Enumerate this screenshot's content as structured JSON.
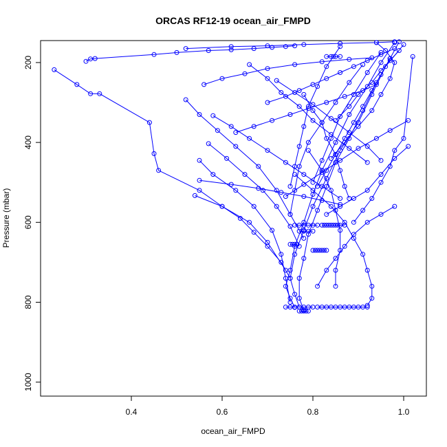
{
  "chart_data": {
    "type": "line",
    "title": "ORCAS RF12-19 ocean_air_FMPD",
    "xlabel": "ocean_air_FMPD",
    "ylabel": "Pressure (mbar)",
    "xlim": [
      0.2,
      1.05
    ],
    "ylim": [
      1035,
      145
    ],
    "y_inverted": true,
    "grid": false,
    "x_ticks": [
      0.4,
      0.6,
      0.8,
      1.0
    ],
    "x_tick_labels": [
      "0.4",
      "0.6",
      "0.8",
      "1.0"
    ],
    "y_ticks": [
      200,
      400,
      600,
      800,
      1000
    ],
    "y_tick_labels": [
      "200",
      "400",
      "600",
      "800",
      "1000"
    ],
    "color": "#0000ff",
    "series": [
      {
        "x": [
          0.98,
          0.95,
          0.92,
          0.88,
          0.85,
          0.82,
          0.8,
          0.78,
          0.76,
          0.75,
          0.74,
          0.75,
          0.76
        ],
        "y": [
          150,
          200,
          260,
          330,
          400,
          470,
          530,
          600,
          660,
          720,
          760,
          790,
          813
        ]
      },
      {
        "x": [
          0.99,
          0.97,
          0.94,
          0.91,
          0.88,
          0.85,
          0.83,
          0.81,
          0.79,
          0.78,
          0.77,
          0.77,
          0.78
        ],
        "y": [
          148,
          190,
          250,
          320,
          390,
          450,
          510,
          570,
          630,
          690,
          740,
          790,
          820
        ]
      },
      {
        "x": [
          1.0,
          0.96,
          0.93,
          0.9,
          0.86,
          0.83,
          0.8,
          0.78,
          0.76,
          0.75,
          0.76,
          0.77
        ],
        "y": [
          155,
          210,
          280,
          350,
          420,
          490,
          560,
          620,
          680,
          740,
          780,
          812
        ]
      },
      {
        "x": [
          0.52,
          0.62,
          0.7,
          0.78,
          0.86,
          0.94,
          0.98
        ],
        "y": [
          165,
          160,
          158,
          155,
          152,
          150,
          148
        ]
      },
      {
        "x": [
          0.23,
          0.28,
          0.31,
          0.33,
          0.44,
          0.45,
          0.46,
          0.55,
          0.6,
          0.66,
          0.7,
          0.74
        ],
        "y": [
          218,
          255,
          278,
          278,
          350,
          428,
          470,
          520,
          560,
          600,
          650,
          720
        ]
      },
      {
        "x": [
          0.3,
          0.31,
          0.32,
          0.45,
          0.5,
          0.57,
          0.62,
          0.67,
          0.71,
          0.74,
          0.76
        ],
        "y": [
          197,
          191,
          190,
          180,
          175,
          170,
          168,
          165,
          162,
          160,
          158
        ]
      },
      {
        "x": [
          0.52,
          0.55,
          0.59,
          0.63,
          0.68,
          0.72,
          0.75,
          0.78
        ],
        "y": [
          293,
          330,
          370,
          410,
          460,
          520,
          580,
          640
        ]
      },
      {
        "x": [
          0.56,
          0.6,
          0.65,
          0.7,
          0.76,
          0.82,
          0.88,
          0.93
        ],
        "y": [
          255,
          240,
          228,
          215,
          205,
          198,
          192,
          188
        ]
      },
      {
        "x": [
          0.55,
          0.58,
          0.63,
          0.67,
          0.71,
          0.73,
          0.74,
          0.75
        ],
        "y": [
          445,
          480,
          520,
          560,
          620,
          680,
          740,
          800
        ]
      },
      {
        "x": [
          0.55,
          0.62,
          0.68,
          0.73,
          0.78,
          0.82,
          0.86
        ],
        "y": [
          495,
          505,
          515,
          525,
          535,
          545,
          555
        ]
      },
      {
        "x": [
          0.54,
          0.6,
          0.64,
          0.67,
          0.7,
          0.73,
          0.75
        ],
        "y": [
          533,
          560,
          590,
          625,
          660,
          700,
          740
        ]
      },
      {
        "x": [
          0.57,
          0.61,
          0.65,
          0.69,
          0.72,
          0.75,
          0.77
        ],
        "y": [
          403,
          440,
          480,
          520,
          560,
          610,
          660
        ]
      },
      {
        "x": [
          0.58,
          0.62,
          0.66,
          0.7,
          0.74,
          0.78,
          0.82,
          0.86
        ],
        "y": [
          333,
          360,
          390,
          420,
          450,
          480,
          510,
          540
        ]
      },
      {
        "x": [
          0.66,
          0.7,
          0.73,
          0.77,
          0.8,
          0.84,
          0.88,
          0.92
        ],
        "y": [
          205,
          240,
          275,
          310,
          345,
          380,
          415,
          450
        ]
      },
      {
        "x": [
          0.63,
          0.67,
          0.71,
          0.75,
          0.79,
          0.83,
          0.87,
          0.91,
          0.94
        ],
        "y": [
          375,
          360,
          345,
          330,
          315,
          300,
          285,
          270,
          255
        ]
      },
      {
        "x": [
          0.74,
          0.78,
          0.82,
          0.86,
          0.9,
          0.94,
          0.97,
          1.01
        ],
        "y": [
          535,
          505,
          475,
          445,
          415,
          390,
          370,
          345
        ]
      },
      {
        "x": [
          0.76,
          0.8,
          0.84,
          0.87,
          0.89,
          0.91,
          0.92,
          0.93,
          0.93,
          0.92
        ],
        "y": [
          480,
          520,
          560,
          600,
          640,
          680,
          720,
          760,
          790,
          808
        ]
      },
      {
        "x": [
          0.79,
          0.82,
          0.84,
          0.85,
          0.86,
          0.86,
          0.85,
          0.85
        ],
        "y": [
          420,
          470,
          520,
          570,
          620,
          670,
          720,
          760
        ]
      },
      {
        "x": [
          0.81,
          0.83,
          0.85,
          0.87,
          0.89,
          0.92,
          0.95,
          0.98
        ],
        "y": [
          760,
          720,
          690,
          660,
          630,
          600,
          580,
          560
        ]
      },
      {
        "x": [
          0.83,
          0.86,
          0.89,
          0.92,
          0.95,
          0.98,
          1.01
        ],
        "y": [
          580,
          560,
          540,
          520,
          480,
          440,
          410
        ]
      },
      {
        "x": [
          0.89,
          0.91,
          0.93,
          0.95,
          0.97,
          0.98,
          1.0,
          1.02
        ],
        "y": [
          600,
          570,
          540,
          500,
          460,
          420,
          390,
          185
        ]
      },
      {
        "x": [
          0.72,
          0.76,
          0.8,
          0.84,
          0.88,
          0.92,
          0.95
        ],
        "y": [
          245,
          275,
          305,
          340,
          375,
          410,
          445
        ]
      },
      {
        "x": [
          0.7,
          0.74,
          0.77,
          0.8,
          0.83,
          0.86,
          0.89,
          0.92,
          0.95,
          0.98
        ],
        "y": [
          300,
          285,
          270,
          255,
          240,
          225,
          210,
          195,
          180,
          165
        ]
      },
      {
        "x": [
          0.85,
          0.88,
          0.9,
          0.93,
          0.95,
          0.97,
          0.99
        ],
        "y": [
          345,
          310,
          280,
          250,
          220,
          195,
          170
        ]
      },
      {
        "x": [
          0.91,
          0.88,
          0.85,
          0.82,
          0.79,
          0.77,
          0.76,
          0.75
        ],
        "y": [
          205,
          250,
          300,
          350,
          400,
          460,
          520,
          580
        ]
      },
      {
        "x": [
          0.95,
          0.92,
          0.89,
          0.86,
          0.84,
          0.82,
          0.8
        ],
        "y": [
          175,
          225,
          280,
          335,
          390,
          445,
          500
        ]
      },
      {
        "x": [
          0.86,
          0.83,
          0.81,
          0.79,
          0.78,
          0.77,
          0.76,
          0.75
        ],
        "y": [
          160,
          210,
          260,
          310,
          360,
          410,
          460,
          510
        ]
      },
      {
        "x": [
          0.97,
          0.95,
          0.93,
          0.91,
          0.89,
          0.87,
          0.85,
          0.83,
          0.81
        ],
        "y": [
          190,
          230,
          270,
          310,
          350,
          390,
          430,
          470,
          510
        ]
      },
      {
        "x": [
          0.94,
          0.96,
          0.98,
          0.97,
          0.95,
          0.93,
          0.9,
          0.87,
          0.84
        ],
        "y": [
          150,
          170,
          200,
          240,
          280,
          320,
          360,
          400,
          440
        ]
      },
      {
        "x": [
          0.78,
          0.8,
          0.82,
          0.83,
          0.85,
          0.86,
          0.87,
          0.88
        ],
        "y": [
          280,
          320,
          350,
          390,
          430,
          470,
          510,
          540
        ]
      },
      {
        "x": [
          0.74,
          0.75,
          0.76,
          0.77,
          0.78,
          0.79,
          0.8
        ],
        "y": [
          812,
          812,
          812,
          812,
          812,
          812,
          812
        ]
      },
      {
        "x": [
          0.77,
          0.775,
          0.78,
          0.785,
          0.79
        ],
        "y": [
          822,
          822,
          822,
          822,
          822
        ]
      },
      {
        "x": [
          0.81,
          0.82,
          0.83,
          0.84,
          0.85,
          0.86,
          0.87,
          0.88,
          0.89,
          0.9,
          0.91,
          0.92
        ],
        "y": [
          812,
          812,
          812,
          812,
          812,
          812,
          812,
          812,
          812,
          812,
          812,
          812
        ]
      },
      {
        "x": [
          0.76,
          0.77,
          0.78,
          0.79,
          0.8,
          0.81
        ],
        "y": [
          607,
          607,
          607,
          607,
          607,
          607
        ]
      },
      {
        "x": [
          0.82,
          0.825,
          0.83,
          0.835,
          0.84,
          0.845,
          0.85,
          0.855,
          0.86,
          0.87
        ],
        "y": [
          607,
          607,
          607,
          607,
          607,
          607,
          607,
          607,
          607,
          607
        ]
      },
      {
        "x": [
          0.77,
          0.78,
          0.79,
          0.8
        ],
        "y": [
          622,
          622,
          622,
          622
        ]
      },
      {
        "x": [
          0.8,
          0.805,
          0.81,
          0.815,
          0.82,
          0.825,
          0.83
        ],
        "y": [
          670,
          670,
          670,
          670,
          670,
          670,
          670
        ]
      },
      {
        "x": [
          0.75,
          0.755,
          0.76,
          0.765
        ],
        "y": [
          655,
          655,
          655,
          655
        ]
      },
      {
        "x": [
          0.83,
          0.84,
          0.845,
          0.85,
          0.86
        ],
        "y": [
          185,
          185,
          185,
          185,
          185
        ]
      }
    ]
  }
}
